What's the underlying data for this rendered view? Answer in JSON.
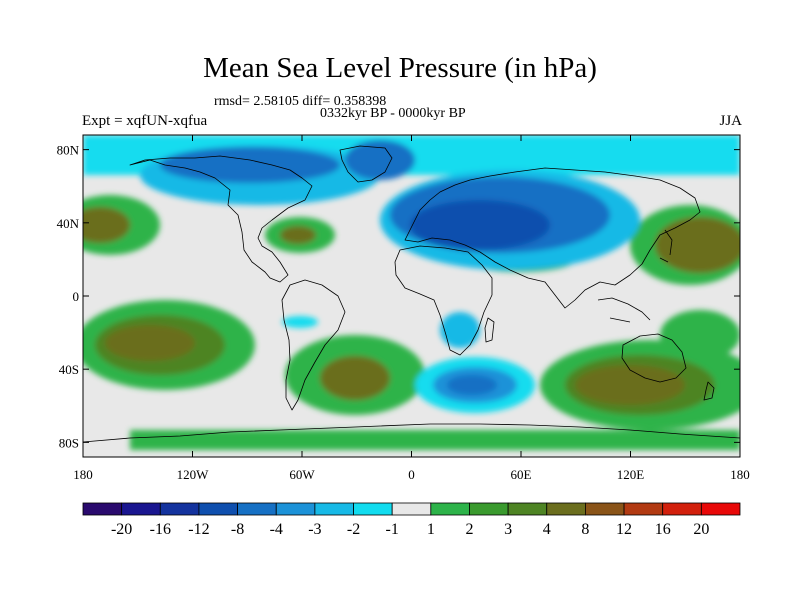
{
  "title": "Mean Sea Level Pressure (in hPa)",
  "stats": "rmsd= 2.58105 diff= 0.358398",
  "period": "0332kyr BP - 0000kyr BP",
  "expt": "Expt = xqfUN-xqfua",
  "season": "JJA",
  "y_axis": {
    "labels": [
      "80N",
      "40N",
      "0",
      "40S",
      "80S"
    ],
    "lats": [
      80,
      40,
      0,
      -40,
      -80
    ]
  },
  "x_axis": {
    "labels": [
      "180",
      "120W",
      "60W",
      "0",
      "60E",
      "120E",
      "180"
    ],
    "lons": [
      -180,
      -120,
      -60,
      0,
      60,
      120,
      180
    ]
  },
  "colorbar": {
    "labels": [
      "-20",
      "-16",
      "-12",
      "-8",
      "-4",
      "-3",
      "-2",
      "-1",
      "1",
      "2",
      "3",
      "4",
      "8",
      "12",
      "16",
      "20"
    ],
    "colors": [
      "#2a0a6e",
      "#1a1690",
      "#14339e",
      "#0f4fae",
      "#1670c4",
      "#1c92d8",
      "#17b9e6",
      "#12dcef",
      "#e8e8e8",
      "#2db34a",
      "#3a9a2e",
      "#4e8424",
      "#6b6e1e",
      "#8a5418",
      "#b23a12",
      "#d2200c",
      "#e80808"
    ]
  },
  "colors": {
    "background": "#ffffff",
    "neutral": "#e8e8e8",
    "coast": "#000000"
  }
}
